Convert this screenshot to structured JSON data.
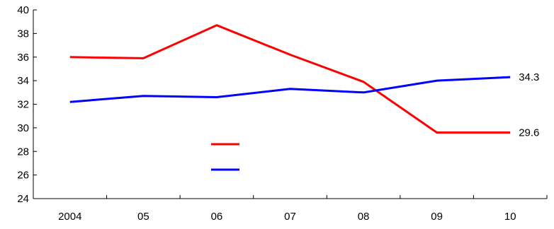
{
  "chart_data": {
    "type": "line",
    "categories": [
      "2004",
      "05",
      "06",
      "07",
      "08",
      "09",
      "10"
    ],
    "ylim": [
      24,
      40
    ],
    "yticks": [
      "24",
      "26",
      "28",
      "30",
      "32",
      "34",
      "36",
      "38",
      "40"
    ],
    "grid": false,
    "legend_position": "center",
    "series": [
      {
        "color": "#ff0000",
        "values": [
          36.0,
          35.9,
          38.7,
          36.2,
          33.9,
          29.6,
          29.6
        ],
        "end_label": "29.6"
      },
      {
        "color": "#0000ff",
        "values": [
          32.2,
          32.7,
          32.6,
          33.3,
          33.0,
          34.0,
          34.3
        ],
        "end_label": "34.3"
      }
    ]
  }
}
